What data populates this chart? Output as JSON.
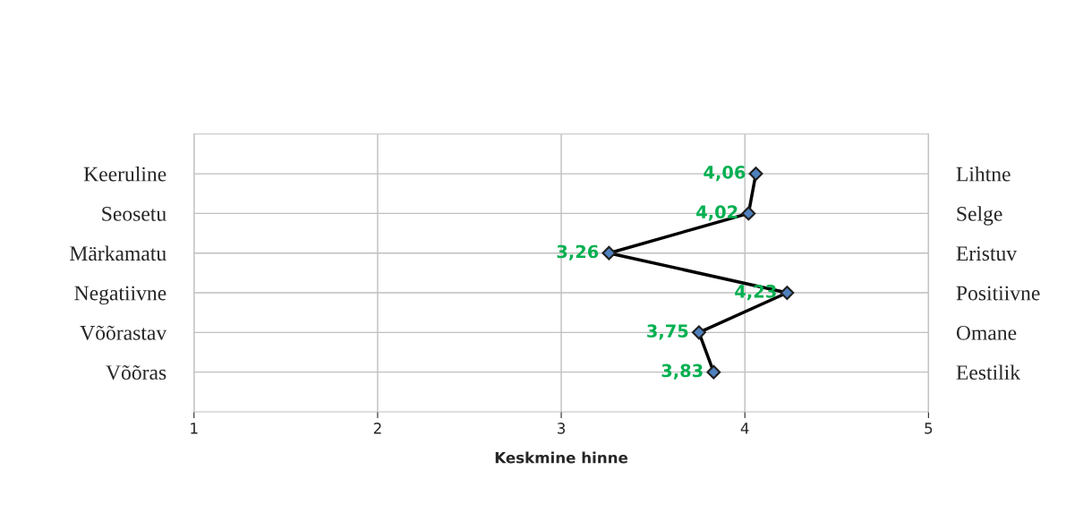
{
  "chart_data": {
    "type": "line",
    "orientation": "horizontal",
    "xlabel": "Keskmine hinne",
    "categories": [
      "Keeruline",
      "Seosetu",
      "Märkamatu",
      "Negatiivne",
      "Võõrastav",
      "Võõras"
    ],
    "y2_categories": [
      "Lihtne",
      "Selge",
      "Eristuv",
      "Positiivne",
      "Omane",
      "Eestilik"
    ],
    "series": [
      {
        "color": "#000000",
        "values": [
          4.06,
          4.02,
          3.26,
          4.23,
          3.75,
          3.83
        ],
        "value_labels": [
          "4,06",
          "4,02",
          "3,26",
          "4,23",
          "3,75",
          "3,83"
        ]
      }
    ],
    "xlim": [
      1,
      5
    ],
    "xticks": [
      1,
      2,
      3,
      4,
      5
    ],
    "grid": true,
    "marker": "diamond"
  }
}
